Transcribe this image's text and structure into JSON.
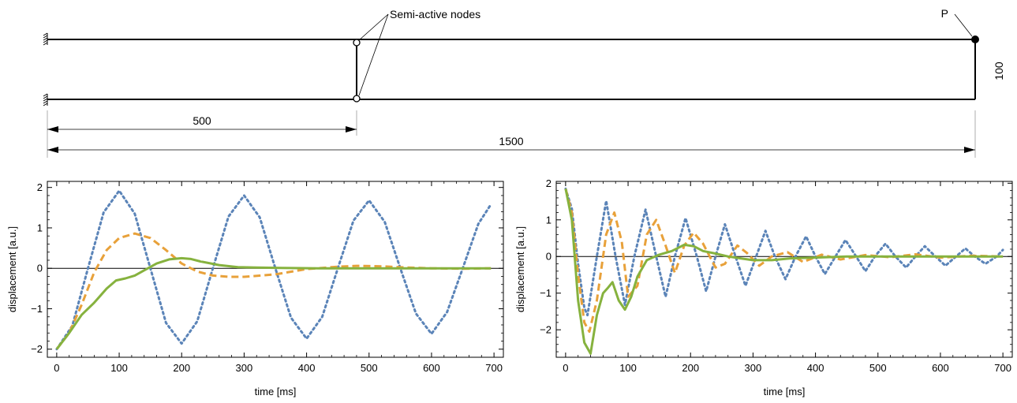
{
  "diagram": {
    "node_label": "Semi-active nodes",
    "point_label": "P",
    "dim_short": "500",
    "dim_long": "1500",
    "dim_height": "100"
  },
  "colors": {
    "series_dotted": "#5b84b8",
    "series_dashed": "#e8a13a",
    "series_solid": "#86b23e"
  },
  "chart_data": [
    {
      "type": "line",
      "title": "",
      "xlabel": "time [ms]",
      "ylabel": "displacement [a.u.]",
      "xlim": [
        -15,
        715
      ],
      "ylim": [
        -2.2,
        2.15
      ],
      "xticks": [
        0,
        100,
        200,
        300,
        400,
        500,
        600,
        700
      ],
      "yticks": [
        -2,
        -1,
        0,
        1,
        2
      ],
      "grid": false,
      "series": [
        {
          "style": "dotted",
          "color": "#5b84b8",
          "x": [
            0,
            25,
            50,
            75,
            100,
            125,
            150,
            175,
            200,
            225,
            250,
            275,
            300,
            325,
            350,
            375,
            400,
            425,
            450,
            475,
            500,
            525,
            550,
            575,
            600,
            625,
            650,
            675,
            695
          ],
          "y": [
            -2.0,
            -1.42,
            0.0,
            1.38,
            1.92,
            1.35,
            0.0,
            -1.35,
            -1.86,
            -1.31,
            0.0,
            1.28,
            1.8,
            1.26,
            0.0,
            -1.22,
            -1.74,
            -1.2,
            0.0,
            1.18,
            1.68,
            1.15,
            0.0,
            -1.12,
            -1.62,
            -1.08,
            0.0,
            1.1,
            1.58
          ]
        },
        {
          "style": "dashed",
          "color": "#e8a13a",
          "x": [
            0,
            20,
            40,
            60,
            80,
            100,
            125,
            150,
            175,
            200,
            225,
            250,
            275,
            300,
            350,
            400,
            450,
            480,
            520,
            560,
            600,
            650,
            695
          ],
          "y": [
            -2.0,
            -1.6,
            -0.9,
            -0.1,
            0.45,
            0.75,
            0.86,
            0.75,
            0.45,
            0.12,
            -0.08,
            -0.18,
            -0.21,
            -0.21,
            -0.15,
            -0.02,
            0.04,
            0.06,
            0.05,
            0.02,
            0.0,
            -0.01,
            0.0
          ]
        },
        {
          "style": "solid",
          "color": "#86b23e",
          "x": [
            0,
            20,
            40,
            60,
            80,
            95,
            110,
            125,
            140,
            160,
            180,
            200,
            215,
            230,
            260,
            290,
            320,
            360,
            420,
            500,
            600,
            695
          ],
          "y": [
            -2.0,
            -1.6,
            -1.15,
            -0.85,
            -0.5,
            -0.3,
            -0.25,
            -0.18,
            -0.05,
            0.12,
            0.22,
            0.25,
            0.23,
            0.17,
            0.08,
            0.03,
            0.02,
            0.01,
            0.0,
            0.0,
            0.0,
            0.0
          ]
        }
      ]
    },
    {
      "type": "line",
      "title": "",
      "xlabel": "time [ms]",
      "ylabel": "displacement [a.u.]",
      "xlim": [
        -15,
        715
      ],
      "ylim": [
        -2.75,
        2.05
      ],
      "xticks": [
        0,
        100,
        200,
        300,
        400,
        500,
        600,
        700
      ],
      "yticks": [
        -2,
        -1,
        0,
        1,
        2
      ],
      "grid": false,
      "series": [
        {
          "style": "dotted",
          "color": "#5b84b8",
          "x": [
            0,
            10,
            20,
            30,
            35,
            50,
            65,
            80,
            95,
            110,
            128,
            145,
            160,
            175,
            192,
            210,
            225,
            240,
            255,
            272,
            288,
            305,
            320,
            335,
            352,
            368,
            385,
            400,
            415,
            432,
            448,
            465,
            480,
            495,
            512,
            528,
            545,
            560,
            575,
            592,
            608,
            625,
            640,
            655,
            672,
            690,
            700
          ],
          "y": [
            1.85,
            1.3,
            -0.2,
            -1.4,
            -1.6,
            0.0,
            1.52,
            0.0,
            -1.32,
            0.0,
            1.28,
            0.0,
            -1.1,
            0.0,
            1.05,
            0.0,
            -0.95,
            0.0,
            0.88,
            0.0,
            -0.8,
            0.0,
            0.7,
            0.0,
            -0.62,
            0.0,
            0.55,
            0.0,
            -0.48,
            0.0,
            0.45,
            0.0,
            -0.4,
            0.0,
            0.35,
            0.0,
            -0.3,
            0.0,
            0.28,
            0.0,
            -0.25,
            0.0,
            0.22,
            0.0,
            -0.2,
            0.0,
            0.18
          ]
        },
        {
          "style": "dashed",
          "color": "#e8a13a",
          "x": [
            0,
            10,
            20,
            30,
            38,
            50,
            65,
            78,
            90,
            100,
            115,
            130,
            145,
            160,
            175,
            190,
            205,
            220,
            240,
            255,
            275,
            290,
            310,
            330,
            355,
            380,
            410,
            440,
            480,
            520,
            560,
            600,
            650,
            700
          ],
          "y": [
            1.85,
            1.2,
            -0.5,
            -1.8,
            -2.05,
            -1.2,
            0.6,
            1.2,
            0.4,
            -1.1,
            -0.8,
            0.6,
            1.0,
            0.3,
            -0.45,
            0.3,
            0.65,
            0.35,
            -0.3,
            -0.2,
            0.3,
            0.1,
            -0.25,
            0.0,
            0.12,
            -0.15,
            0.05,
            -0.08,
            0.04,
            -0.02,
            0.06,
            -0.03,
            0.02,
            0.0
          ]
        },
        {
          "style": "solid",
          "color": "#86b23e",
          "x": [
            0,
            10,
            20,
            30,
            40,
            50,
            60,
            68,
            75,
            85,
            95,
            105,
            115,
            130,
            150,
            170,
            190,
            205,
            220,
            240,
            260,
            280,
            300,
            330,
            360,
            400,
            450,
            500,
            550,
            600,
            650,
            700
          ],
          "y": [
            1.85,
            1.0,
            -1.2,
            -2.35,
            -2.65,
            -1.6,
            -1.0,
            -0.85,
            -0.7,
            -1.2,
            -1.45,
            -1.1,
            -0.55,
            -0.1,
            0.05,
            0.15,
            0.32,
            0.28,
            0.15,
            0.08,
            0.0,
            -0.05,
            -0.1,
            -0.1,
            -0.05,
            -0.03,
            0.0,
            0.0,
            0.0,
            0.0,
            0.0,
            0.0
          ]
        }
      ]
    }
  ]
}
